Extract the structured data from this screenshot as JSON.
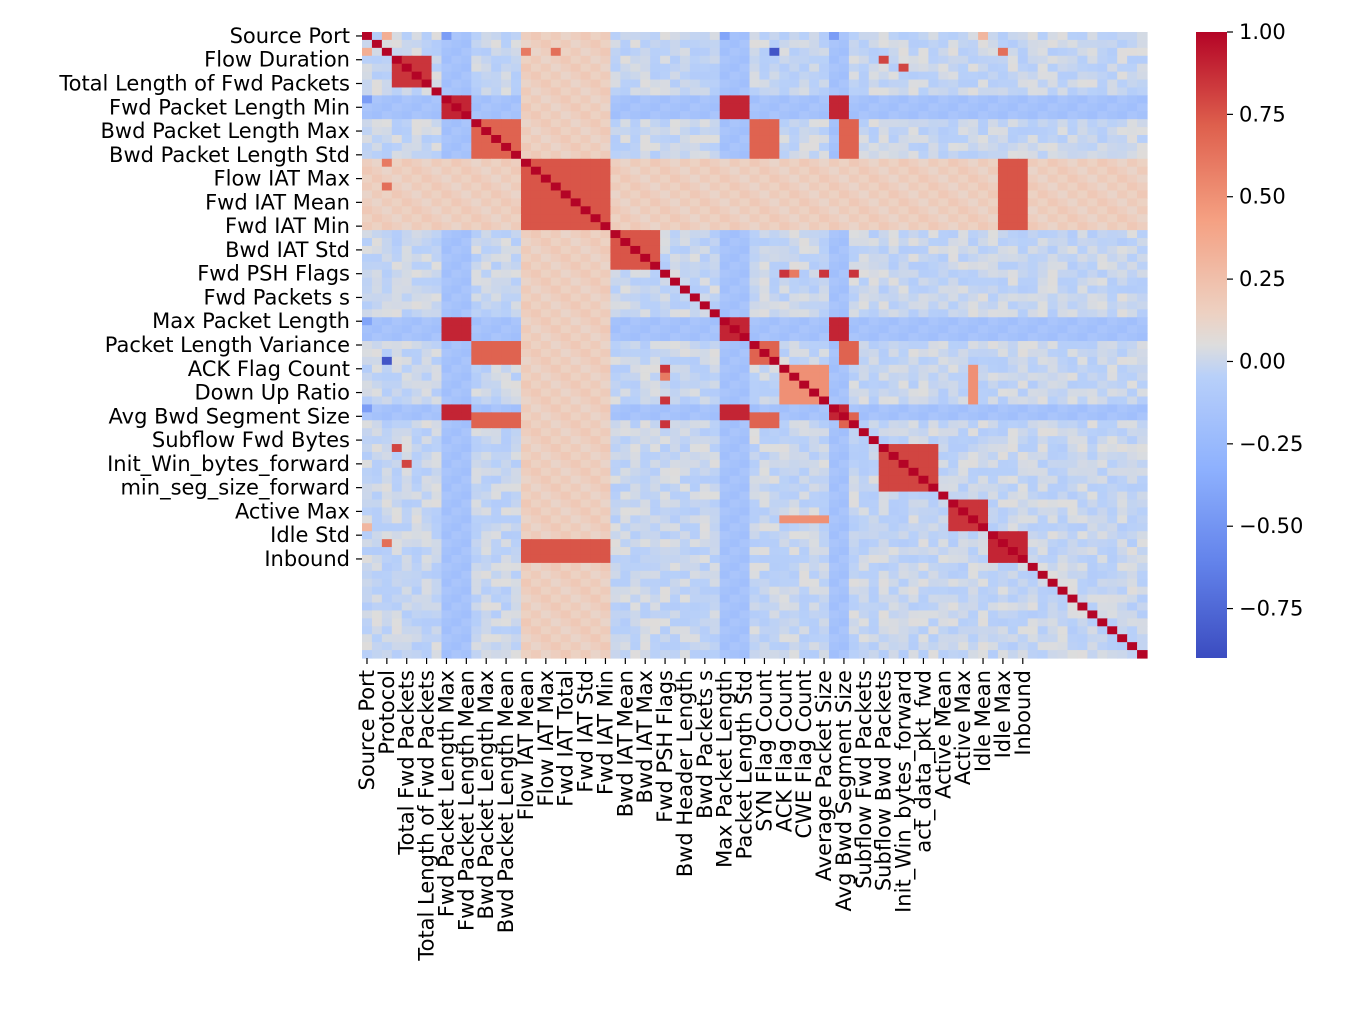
{
  "chart_data": {
    "type": "heatmap",
    "title": "",
    "xlabel": "",
    "ylabel": "",
    "n_features": 79,
    "y_tick_labels": [
      "Source Port",
      "Flow Duration",
      "Total Length of Fwd Packets",
      "Fwd Packet Length Min",
      "Bwd Packet Length Max",
      "Bwd Packet Length Std",
      "Flow IAT Max",
      "Fwd IAT Mean",
      "Fwd IAT Min",
      "Bwd IAT Std",
      "Fwd PSH Flags",
      "Fwd Packets s",
      "Max Packet Length",
      "Packet Length Variance",
      "ACK Flag Count",
      "Down Up Ratio",
      "Avg Bwd Segment Size",
      "Subflow Fwd Bytes",
      "Init_Win_bytes_forward",
      "min_seg_size_forward",
      "Active Max",
      "Idle Std",
      "Inbound"
    ],
    "y_tick_indices": [
      0,
      3,
      6,
      9,
      12,
      15,
      18,
      21,
      24,
      27,
      30,
      33,
      36,
      39,
      42,
      45,
      48,
      51,
      54,
      57,
      60,
      63,
      66
    ],
    "x_tick_labels": [
      "Source Port",
      "Protocol",
      "Total Fwd Packets",
      "Total Length of Fwd Packets",
      "Fwd Packet Length Max",
      "Fwd Packet Length Mean",
      "Bwd Packet Length Max",
      "Bwd Packet Length Mean",
      "Flow IAT Mean",
      "Flow IAT Max",
      "Fwd IAT Total",
      "Fwd IAT Std",
      "Fwd IAT Min",
      "Bwd IAT Mean",
      "Bwd IAT Max",
      "Fwd PSH Flags",
      "Bwd Header Length",
      "Bwd Packets s",
      "Max Packet Length",
      "Packet Length Std",
      "SYN Flag Count",
      "ACK Flag Count",
      "CWE Flag Count",
      "Average Packet Size",
      "Avg Bwd Segment Size",
      "Subflow Fwd Packets",
      "Subflow Bwd Packets",
      "Init_Win_bytes_forward",
      "act_data_pkt_fwd",
      "Active Mean",
      "Active Max",
      "Idle Mean",
      "Idle Max",
      "Inbound"
    ],
    "x_tick_indices": [
      0,
      2,
      4,
      6,
      8,
      10,
      12,
      14,
      16,
      18,
      20,
      22,
      24,
      26,
      28,
      30,
      32,
      34,
      36,
      38,
      40,
      42,
      44,
      46,
      48,
      50,
      52,
      54,
      56,
      58,
      60,
      62,
      64,
      66
    ],
    "colorbar": {
      "vmin": -0.9,
      "vmax": 1.0,
      "ticks": [
        1.0,
        0.75,
        0.5,
        0.25,
        0.0,
        -0.25,
        -0.5,
        -0.75
      ],
      "tick_labels": [
        "1.00",
        "0.75",
        "0.50",
        "0.25",
        "0.00",
        "−0.25",
        "−0.50",
        "−0.75"
      ],
      "colormap": "coolwarm"
    },
    "clusters": [
      {
        "features": [
          3,
          4,
          5,
          6
        ],
        "value": 0.85
      },
      {
        "features": [
          8,
          9,
          10,
          36,
          37,
          38,
          47,
          48
        ],
        "value": 0.9
      },
      {
        "features": [
          11,
          12,
          13,
          14,
          15,
          39,
          40,
          41,
          48,
          49
        ],
        "value": 0.7
      },
      {
        "features": [
          16,
          17,
          18,
          19,
          20,
          21,
          22,
          23,
          24,
          64,
          65,
          66
        ],
        "value": 0.75
      },
      {
        "features": [
          25,
          26,
          27,
          28,
          29
        ],
        "value": 0.75
      },
      {
        "features": [
          42,
          43,
          44,
          45,
          46,
          61
        ],
        "value": 0.5
      },
      {
        "features": [
          52,
          53,
          54,
          55,
          56,
          57
        ],
        "value": 0.8
      },
      {
        "features": [
          59,
          60,
          61,
          62
        ],
        "value": 0.85
      },
      {
        "features": [
          63,
          64,
          65,
          66
        ],
        "value": 0.9
      }
    ],
    "pair_values": [
      {
        "i": 0,
        "j": 8,
        "value": -0.45
      },
      {
        "i": 0,
        "j": 36,
        "value": -0.4
      },
      {
        "i": 0,
        "j": 47,
        "value": -0.45
      },
      {
        "i": 2,
        "j": 41,
        "value": -0.85
      },
      {
        "i": 2,
        "j": 16,
        "value": 0.6
      },
      {
        "i": 2,
        "j": 19,
        "value": 0.65
      },
      {
        "i": 2,
        "j": 64,
        "value": 0.65
      },
      {
        "i": 3,
        "j": 52,
        "value": 0.8
      },
      {
        "i": 4,
        "j": 54,
        "value": 0.8
      },
      {
        "i": 30,
        "j": 46,
        "value": 0.85
      },
      {
        "i": 30,
        "j": 49,
        "value": 0.85
      },
      {
        "i": 30,
        "j": 42,
        "value": 0.85
      },
      {
        "i": 30,
        "j": 43,
        "value": 0.6
      },
      {
        "i": 2,
        "j": 0,
        "value": 0.35
      },
      {
        "i": 0,
        "j": 62,
        "value": 0.3
      }
    ],
    "ylim": [
      -0.9,
      1.0
    ]
  }
}
